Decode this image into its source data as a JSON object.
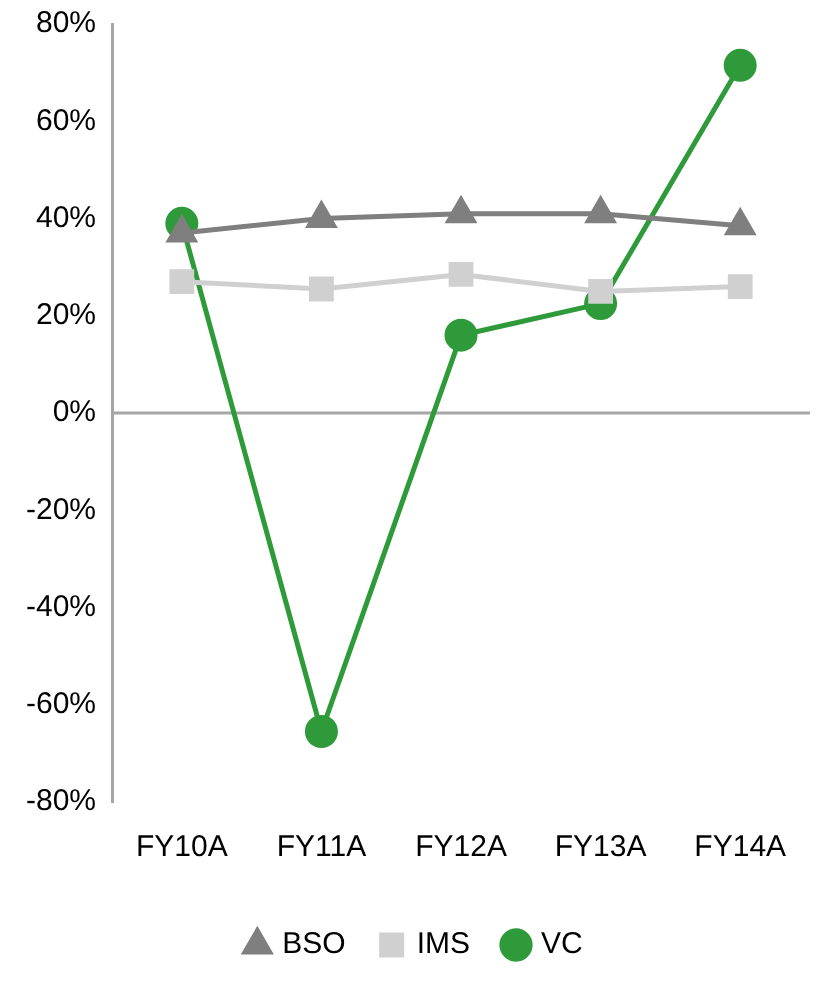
{
  "chart_data": {
    "type": "line",
    "categories": [
      "FY10A",
      "FY11A",
      "FY12A",
      "FY13A",
      "FY14A"
    ],
    "series": [
      {
        "name": "BSO",
        "color": "#7f7f7f",
        "marker": "triangle",
        "values": [
          37,
          40,
          41,
          41,
          38.5
        ]
      },
      {
        "name": "IMS",
        "color": "#d0d0d0",
        "marker": "square",
        "values": [
          27,
          25.5,
          28.5,
          25,
          26
        ]
      },
      {
        "name": "VC",
        "color": "#2e9a3a",
        "marker": "circle",
        "values": [
          39,
          -65.5,
          16,
          22.5,
          71.5
        ]
      }
    ],
    "ylim": [
      -80,
      80
    ],
    "yticks": [
      {
        "value": -80,
        "label": "-80%"
      },
      {
        "value": -60,
        "label": "-60%"
      },
      {
        "value": -40,
        "label": "-40%"
      },
      {
        "value": -20,
        "label": "-20%"
      },
      {
        "value": 0,
        "label": "0%"
      },
      {
        "value": 20,
        "label": "20%"
      },
      {
        "value": 40,
        "label": "40%"
      },
      {
        "value": 60,
        "label": "60%"
      },
      {
        "value": 80,
        "label": "80%"
      }
    ],
    "ref_lines": [
      {
        "axis": "y",
        "value": 0,
        "color": "#a6a6a6"
      }
    ],
    "grid": false,
    "legend": "bottom",
    "line_style": "solid"
  }
}
